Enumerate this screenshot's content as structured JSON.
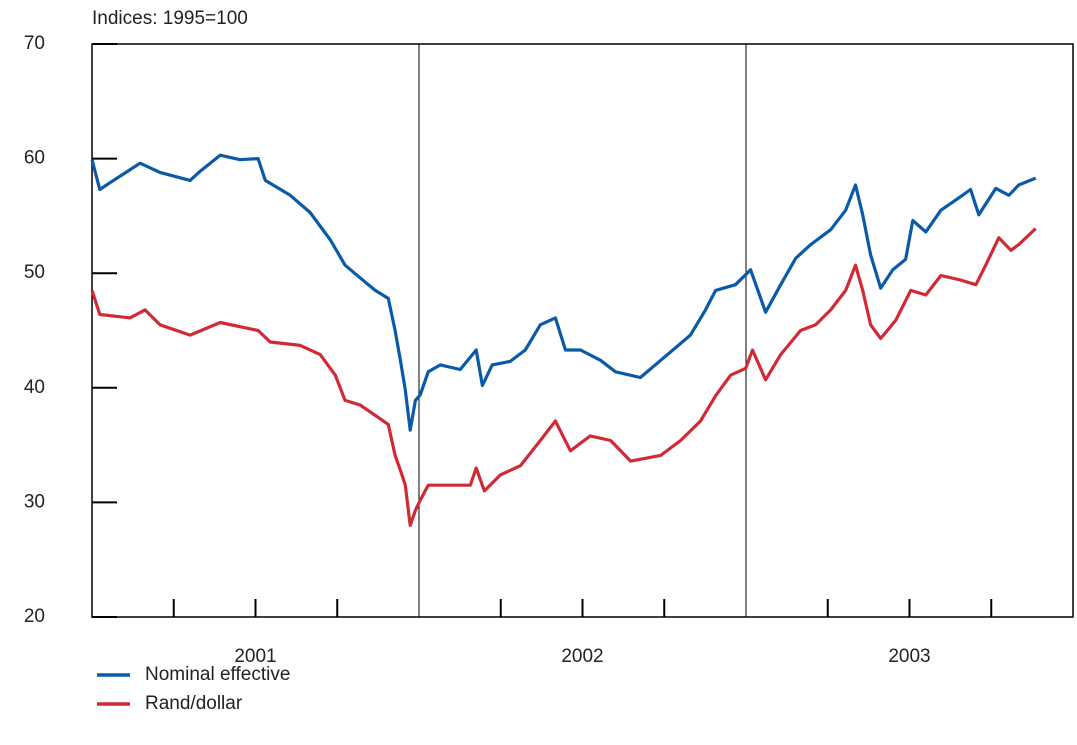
{
  "chart_data": {
    "type": "line",
    "ylabel": "Indices: 1995=100",
    "xlim": [
      2001,
      2004
    ],
    "xticks": [
      {
        "value": 2001.5,
        "label": "2001"
      },
      {
        "value": 2002.5,
        "label": "2002"
      },
      {
        "value": 2003.5,
        "label": "2003"
      }
    ],
    "ylim": [
      20,
      70
    ],
    "yticks": [
      20,
      30,
      40,
      50,
      60,
      70
    ],
    "legend": "bottom-left",
    "series": [
      {
        "name": "Nominal effective",
        "color": "#0a5aa8",
        "x": [
          2001.0,
          2001.024,
          2001.055,
          2001.147,
          2001.208,
          2001.3,
          2001.331,
          2001.392,
          2001.453,
          2001.508,
          2001.53,
          2001.606,
          2001.667,
          2001.729,
          2001.774,
          2001.82,
          2001.866,
          2001.906,
          2001.927,
          2001.943,
          2001.958,
          2001.973,
          2001.989,
          2002.004,
          2002.028,
          2002.065,
          2002.126,
          2002.175,
          2002.194,
          2002.224,
          2002.279,
          2002.325,
          2002.371,
          2002.417,
          2002.448,
          2002.494,
          2002.555,
          2002.601,
          2002.677,
          2002.739,
          2002.83,
          2002.876,
          2002.907,
          2002.968,
          2003.014,
          2003.06,
          2003.106,
          2003.152,
          2003.198,
          2003.259,
          2003.305,
          2003.335,
          2003.357,
          2003.381,
          2003.412,
          2003.449,
          2003.488,
          2003.51,
          2003.55,
          2003.596,
          2003.642,
          2003.687,
          2003.712,
          2003.764,
          2003.804,
          2003.834,
          2003.886
        ],
        "values": [
          59.9,
          57.3,
          57.9,
          59.6,
          58.8,
          58.1,
          58.9,
          60.3,
          59.9,
          60,
          58.1,
          56.8,
          55.3,
          52.9,
          50.7,
          49.6,
          48.5,
          47.8,
          45,
          42.4,
          39.8,
          36.3,
          38.9,
          39.4,
          41.4,
          42,
          41.6,
          43.3,
          40.2,
          42,
          42.3,
          43.3,
          45.5,
          46.1,
          43.3,
          43.3,
          42.4,
          41.4,
          40.9,
          42.4,
          44.6,
          46.8,
          48.5,
          49,
          50.3,
          46.6,
          49,
          51.3,
          52.5,
          53.8,
          55.5,
          57.7,
          55.1,
          51.6,
          48.7,
          50.3,
          51.2,
          54.6,
          53.6,
          55.5,
          56.4,
          57.3,
          55.1,
          57.4,
          56.8,
          57.7,
          58.3
        ]
      },
      {
        "name": "Rand/dollar",
        "color": "#d02a35",
        "x": [
          2001.0,
          2001.024,
          2001.116,
          2001.162,
          2001.208,
          2001.3,
          2001.392,
          2001.508,
          2001.545,
          2001.637,
          2001.698,
          2001.744,
          2001.774,
          2001.82,
          2001.866,
          2001.906,
          2001.927,
          2001.943,
          2001.958,
          2001.973,
          2001.989,
          2002.004,
          2002.028,
          2002.08,
          2002.157,
          2002.175,
          2002.2,
          2002.249,
          2002.31,
          2002.371,
          2002.417,
          2002.463,
          2002.524,
          2002.586,
          2002.647,
          2002.739,
          2002.8,
          2002.861,
          2002.907,
          2002.953,
          2002.999,
          2003.02,
          2003.06,
          2003.106,
          2003.167,
          2003.213,
          2003.259,
          2003.305,
          2003.335,
          2003.357,
          2003.381,
          2003.412,
          2003.458,
          2003.504,
          2003.55,
          2003.596,
          2003.657,
          2003.703,
          2003.733,
          2003.773,
          2003.81,
          2003.834,
          2003.886
        ],
        "values": [
          48.5,
          46.4,
          46.1,
          46.8,
          45.5,
          44.6,
          45.7,
          45,
          44,
          43.7,
          42.9,
          41.1,
          38.9,
          38.5,
          37.6,
          36.8,
          34.1,
          32.8,
          31.5,
          28.0,
          29.3,
          30.2,
          31.5,
          31.5,
          31.5,
          33,
          31,
          32.4,
          33.2,
          35.4,
          37.1,
          34.5,
          35.8,
          35.4,
          33.6,
          34.1,
          35.4,
          37.1,
          39.3,
          41.1,
          41.7,
          43.3,
          40.7,
          42.9,
          45,
          45.5,
          46.8,
          48.5,
          50.7,
          48.5,
          45.5,
          44.3,
          45.9,
          48.5,
          48.1,
          49.8,
          49.4,
          49,
          50.7,
          53.1,
          52,
          52.5,
          53.9
        ]
      }
    ]
  }
}
